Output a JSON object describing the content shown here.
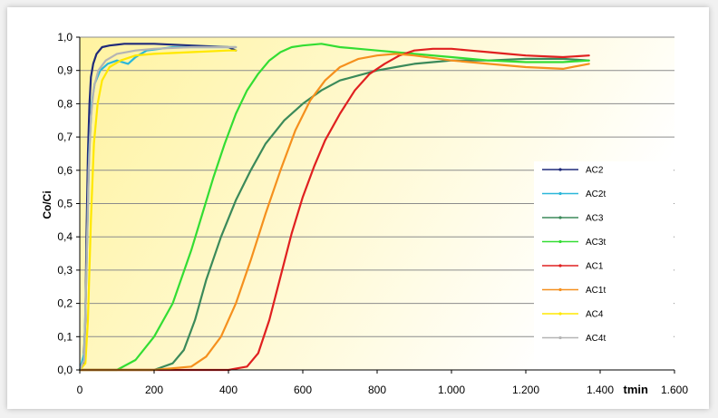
{
  "chart_data": {
    "type": "line",
    "title": "",
    "ylabel": "Co/Ci",
    "xlabel": "tmin",
    "xlim": [
      0,
      1600
    ],
    "ylim": [
      0,
      1.0
    ],
    "x_ticks": [
      "0",
      "200",
      "400",
      "600",
      "800",
      "1.000",
      "1.200",
      "1.400",
      "1.600"
    ],
    "y_ticks": [
      "0,0",
      "0,1",
      "0,2",
      "0,3",
      "0,4",
      "0,5",
      "0,6",
      "0,7",
      "0,8",
      "0,9",
      "1,0"
    ],
    "grid": true,
    "legend_position": "right",
    "series": [
      {
        "name": "AC2",
        "color": "#1f2a7a",
        "x": [
          0,
          10,
          15,
          18,
          22,
          26,
          30,
          36,
          45,
          60,
          80,
          120,
          200,
          300,
          400,
          420
        ],
        "y": [
          0,
          0.02,
          0.15,
          0.4,
          0.65,
          0.8,
          0.88,
          0.92,
          0.95,
          0.97,
          0.975,
          0.98,
          0.98,
          0.975,
          0.97,
          0.96
        ]
      },
      {
        "name": "AC2t",
        "color": "#2ab7d9",
        "x": [
          0,
          12,
          18,
          25,
          32,
          40,
          55,
          75,
          100,
          130,
          150,
          180,
          250,
          350,
          420
        ],
        "y": [
          0,
          0.05,
          0.3,
          0.65,
          0.8,
          0.86,
          0.9,
          0.92,
          0.93,
          0.92,
          0.94,
          0.96,
          0.97,
          0.97,
          0.97
        ]
      },
      {
        "name": "AC3",
        "color": "#3b8a5a",
        "x": [
          0,
          200,
          250,
          280,
          310,
          340,
          380,
          420,
          460,
          500,
          550,
          600,
          650,
          700,
          750,
          800,
          850,
          900,
          950,
          1000,
          1100,
          1200,
          1300,
          1370
        ],
        "y": [
          0,
          0.0,
          0.02,
          0.06,
          0.15,
          0.27,
          0.4,
          0.51,
          0.6,
          0.68,
          0.75,
          0.8,
          0.84,
          0.87,
          0.885,
          0.9,
          0.91,
          0.92,
          0.925,
          0.93,
          0.93,
          0.935,
          0.935,
          0.93
        ]
      },
      {
        "name": "AC3t",
        "color": "#33dd33",
        "x": [
          0,
          100,
          150,
          200,
          250,
          300,
          330,
          360,
          390,
          420,
          450,
          480,
          510,
          540,
          570,
          600,
          650,
          700,
          750,
          800,
          900,
          1000,
          1100,
          1200,
          1300,
          1370
        ],
        "y": [
          0,
          0.0,
          0.03,
          0.1,
          0.2,
          0.36,
          0.47,
          0.58,
          0.68,
          0.77,
          0.84,
          0.89,
          0.93,
          0.955,
          0.97,
          0.975,
          0.98,
          0.97,
          0.965,
          0.96,
          0.95,
          0.94,
          0.93,
          0.925,
          0.925,
          0.93
        ]
      },
      {
        "name": "AC1",
        "color": "#e02020",
        "x": [
          0,
          300,
          400,
          450,
          480,
          510,
          540,
          570,
          600,
          630,
          660,
          700,
          740,
          780,
          820,
          860,
          900,
          950,
          1000,
          1050,
          1100,
          1150,
          1200,
          1300,
          1370
        ],
        "y": [
          0,
          0.0,
          0.0,
          0.01,
          0.05,
          0.15,
          0.28,
          0.41,
          0.52,
          0.61,
          0.69,
          0.77,
          0.84,
          0.89,
          0.92,
          0.945,
          0.96,
          0.965,
          0.965,
          0.96,
          0.955,
          0.95,
          0.945,
          0.94,
          0.945
        ]
      },
      {
        "name": "AC1t",
        "color": "#f5901e",
        "x": [
          0,
          200,
          300,
          340,
          380,
          420,
          460,
          500,
          540,
          580,
          620,
          660,
          700,
          750,
          800,
          850,
          900,
          1000,
          1100,
          1200,
          1300,
          1370
        ],
        "y": [
          0,
          0.0,
          0.01,
          0.04,
          0.1,
          0.2,
          0.33,
          0.47,
          0.6,
          0.72,
          0.81,
          0.87,
          0.91,
          0.935,
          0.945,
          0.95,
          0.945,
          0.93,
          0.92,
          0.91,
          0.905,
          0.92
        ]
      },
      {
        "name": "AC4",
        "color": "#ffe800",
        "x": [
          0,
          15,
          22,
          30,
          38,
          48,
          60,
          80,
          110,
          150,
          200,
          300,
          400,
          420
        ],
        "y": [
          0,
          0.02,
          0.15,
          0.45,
          0.68,
          0.8,
          0.87,
          0.91,
          0.93,
          0.945,
          0.95,
          0.955,
          0.96,
          0.96
        ]
      },
      {
        "name": "AC4t",
        "color": "#b4b4b4",
        "x": [
          0,
          12,
          18,
          24,
          30,
          38,
          50,
          70,
          100,
          150,
          200,
          300,
          400,
          420
        ],
        "y": [
          0,
          0.03,
          0.3,
          0.6,
          0.76,
          0.85,
          0.9,
          0.93,
          0.95,
          0.96,
          0.965,
          0.97,
          0.97,
          0.97
        ]
      }
    ]
  },
  "colors": {
    "plot_gradient_left": "#fff3a0",
    "plot_gradient_right": "#ffffff",
    "grid": "#8c8c8c"
  }
}
